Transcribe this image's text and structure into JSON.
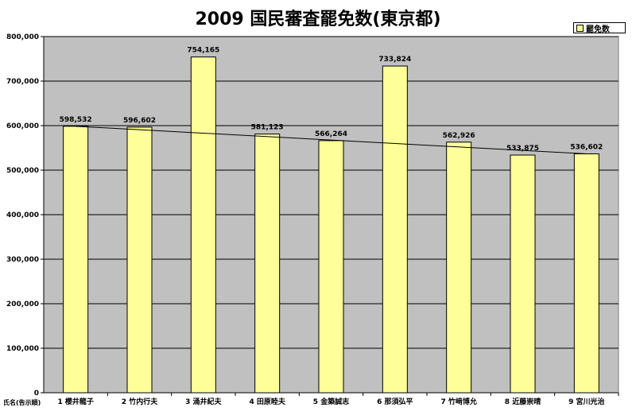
{
  "chart_data": {
    "type": "bar",
    "title": "2009 国民審査罷免数(東京都)",
    "xlabel": "氏名(告示順)",
    "ylabel": "",
    "ylim": [
      0,
      800000
    ],
    "yticks": [
      "0",
      "100,000",
      "200,000",
      "300,000",
      "400,000",
      "500,000",
      "600,000",
      "700,000",
      "800,000"
    ],
    "categories": [
      "1 櫻井龍子",
      "2 竹内行夫",
      "3 涌井紀夫",
      "4 田原睦夫",
      "5 金築誠志",
      "6 那須弘平",
      "7 竹﨑博允",
      "8 近藤崇晴",
      "9 宮川光治"
    ],
    "series": [
      {
        "name": "罷免数",
        "values": [
          598532,
          596602,
          754165,
          581123,
          566264,
          733824,
          562926,
          533875,
          536602
        ],
        "labels": [
          "598,532",
          "596,602",
          "754,165",
          "581,123",
          "566,264",
          "733,824",
          "562,926",
          "533,875",
          "536,602"
        ]
      }
    ],
    "trendline": {
      "type": "linear",
      "start": 598532,
      "end": 536602
    },
    "legend_position": "top-right",
    "colors": {
      "bar": "#ffff99",
      "plot_background": "#c0c0c0",
      "grid": "#000000"
    }
  }
}
